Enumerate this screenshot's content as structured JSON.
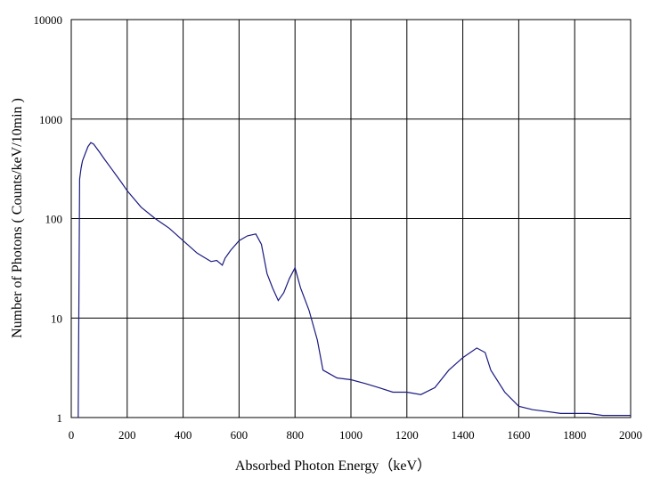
{
  "chart_data": {
    "type": "line",
    "title": "",
    "xlabel": "Absorbed Photon Energy（keV）",
    "ylabel": "Number of Photons ( Counts/keV/10min )",
    "xlim": [
      0,
      2000
    ],
    "ylim": [
      1,
      10000
    ],
    "y_scale": "log",
    "grid": true,
    "legend": "none",
    "line_color": "#1a1a80",
    "x_ticks": [
      "0",
      "200",
      "400",
      "600",
      "800",
      "1000",
      "1200",
      "1400",
      "1600",
      "1800",
      "2000"
    ],
    "y_ticks": [
      "1",
      "10",
      "100",
      "1000",
      "10000"
    ],
    "series": [
      {
        "x": [
          25,
          30,
          35,
          40,
          50,
          60,
          70,
          80,
          100,
          120,
          150,
          180,
          200,
          250,
          300,
          350,
          400,
          450,
          480,
          500,
          520,
          540,
          550,
          570,
          600,
          630,
          660,
          680,
          700,
          720,
          740,
          760,
          780,
          800,
          820,
          850,
          880,
          900,
          950,
          1000,
          1050,
          1100,
          1150,
          1200,
          1250,
          1300,
          1350,
          1400,
          1450,
          1480,
          1500,
          1550,
          1600,
          1650,
          1700,
          1750,
          1800,
          1850,
          1900,
          1950,
          2000
        ],
        "values": [
          1,
          250,
          320,
          380,
          450,
          530,
          580,
          560,
          470,
          390,
          300,
          230,
          190,
          130,
          100,
          80,
          60,
          45,
          40,
          37,
          38,
          34,
          40,
          48,
          60,
          67,
          70,
          55,
          28,
          20,
          15,
          18,
          25,
          32,
          20,
          12,
          6,
          3,
          2.5,
          2.4,
          2.2,
          2,
          1.8,
          1.8,
          1.7,
          2,
          3,
          4,
          5,
          4.5,
          3,
          1.8,
          1.3,
          1.2,
          1.15,
          1.1,
          1.1,
          1.1,
          1.05,
          1.05,
          1.05
        ]
      }
    ]
  }
}
